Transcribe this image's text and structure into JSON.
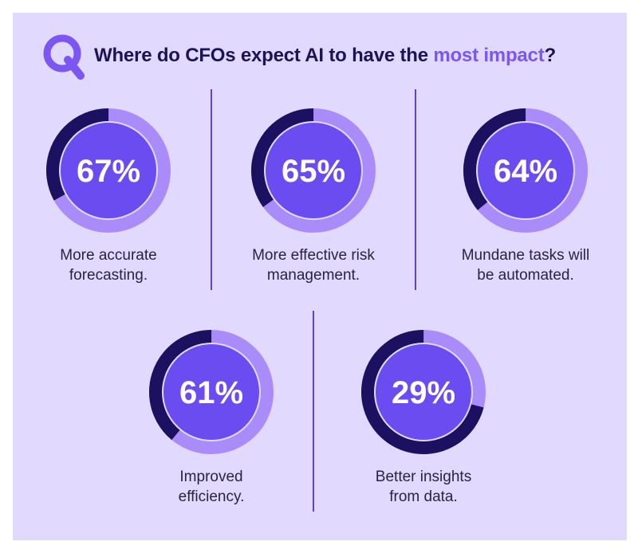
{
  "header": {
    "icon": "question-q-icon",
    "title_pre": "Where do CFOs expect AI to have the ",
    "title_highlight": "most impact",
    "title_post": "?"
  },
  "colors": {
    "background": "#e1dafe",
    "ring_filled": "#1c1060",
    "ring_remaining": "#a98cf9",
    "center": "#6b4cf0",
    "accent": "#7b56f2"
  },
  "chart_data": {
    "type": "donut",
    "title": "Where do CFOs expect AI to have the most impact?",
    "unit": "%",
    "items": [
      {
        "value": 67,
        "value_label": "67%",
        "label": "More accurate\nforecasting."
      },
      {
        "value": 65,
        "value_label": "65%",
        "label": "More effective risk\nmanagement."
      },
      {
        "value": 64,
        "value_label": "64%",
        "label": "Mundane tasks will\nbe automated."
      },
      {
        "value": 61,
        "value_label": "61%",
        "label": "Improved\nefficiency."
      },
      {
        "value": 29,
        "value_label": "29%",
        "label": "Better insights\nfrom data."
      }
    ]
  }
}
